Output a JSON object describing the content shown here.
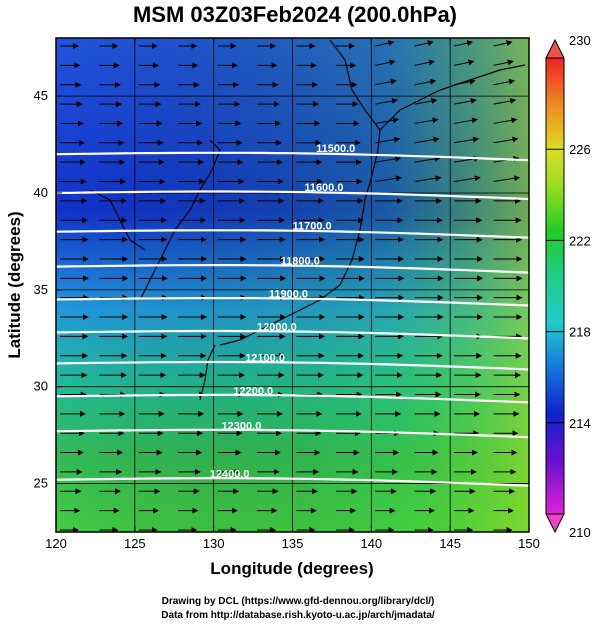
{
  "chart_data": {
    "type": "heatmap",
    "title": "MSM 03Z03Feb2024 (200.0hPa)",
    "xlabel": "Longitude (degrees)",
    "ylabel": "Latitude  (degrees)",
    "xlim": [
      120,
      150
    ],
    "ylim": [
      22.5,
      48
    ],
    "xticks": [
      "120",
      "125",
      "130",
      "135",
      "140",
      "145",
      "150"
    ],
    "yticks": [
      "25",
      "30",
      "35",
      "40",
      "45"
    ],
    "colorbar": {
      "min": 210,
      "max": 230,
      "ticks": [
        "210",
        "214",
        "218",
        "222",
        "226",
        "230"
      ]
    },
    "contours": [
      {
        "label": "11500.0",
        "lat": 42.0
      },
      {
        "label": "11600.0",
        "lat": 40.0
      },
      {
        "label": "11700.0",
        "lat": 38.0
      },
      {
        "label": "11800.0",
        "lat": 36.2
      },
      {
        "label": "11900.0",
        "lat": 34.5
      },
      {
        "label": "12000.0",
        "lat": 32.8
      },
      {
        "label": "12100.0",
        "lat": 31.2
      },
      {
        "label": "12200.0",
        "lat": 29.5
      },
      {
        "label": "12300.0",
        "lat": 27.7
      },
      {
        "label": "12400.0",
        "lat": 25.2
      }
    ],
    "grid": true,
    "wind_vectors": "westerly"
  },
  "credits": {
    "line1": "Drawing by DCL (https://www.gfd-dennou.org/library/dcl/)",
    "line2": "Data from http://database.rish.kyoto-u.ac.jp/arch/jmadata/"
  },
  "colors": {
    "low": "#cc22cc",
    "mid_low": "#1111cc",
    "mid": "#22cccc",
    "mid_high": "#22cc22",
    "high": "#dddd22",
    "top": "#ee4433"
  }
}
